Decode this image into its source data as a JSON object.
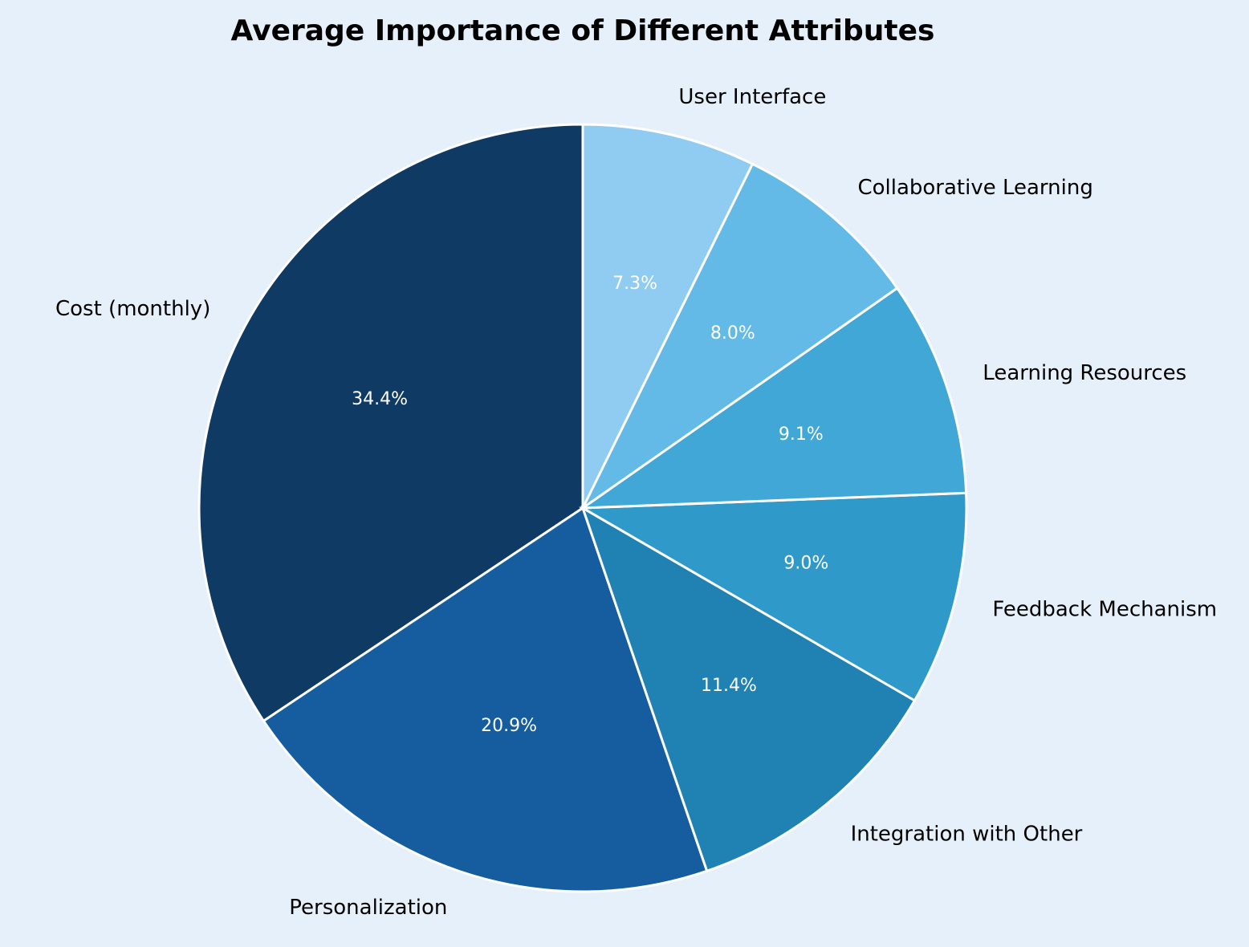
{
  "chart_data": {
    "type": "pie",
    "title": "Average Importance of Different Attributes",
    "categories": [
      "Cost (monthly)",
      "Personalization",
      "Integration with Other",
      "Feedback Mechanism",
      "Learning Resources",
      "Collaborative Learning",
      "User Interface"
    ],
    "values": [
      34.4,
      20.9,
      11.4,
      9.0,
      9.1,
      8.0,
      7.3
    ],
    "value_labels": [
      "34.4%",
      "20.9%",
      "11.4%",
      "9.0%",
      "9.1%",
      "8.0%",
      "7.3%"
    ],
    "colors": [
      "#0f3a64",
      "#155d9e",
      "#2081b3",
      "#2f9aca",
      "#40a7d6",
      "#63bae6",
      "#90cbf2"
    ],
    "start_angle_deg": 90,
    "direction": "counterclockwise",
    "background": "#e6f0fa"
  }
}
